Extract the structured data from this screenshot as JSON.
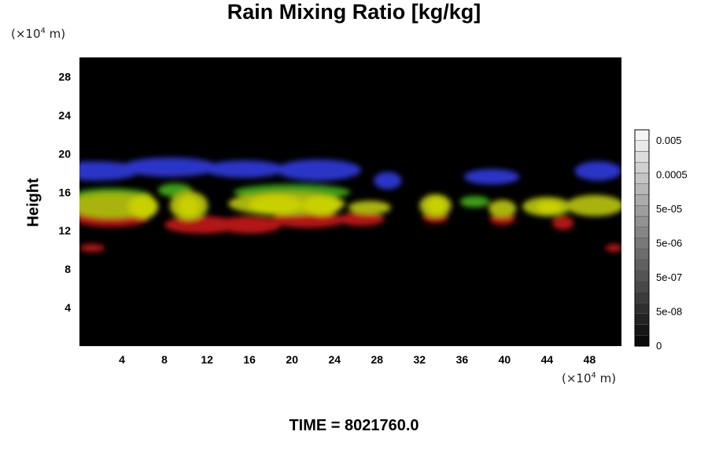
{
  "chart_data": {
    "type": "heatmap",
    "title": "Rain Mixing Ratio [kg/kg]",
    "ylabel": "Height",
    "xlabel": "",
    "x_unit_prefix": "(×10",
    "x_unit_exp": "4",
    "x_unit_suffix": " m)",
    "y_unit_prefix": "(×10",
    "y_unit_exp": "4",
    "y_unit_suffix": " m)",
    "xlim": [
      0,
      51
    ],
    "ylim": [
      0,
      30
    ],
    "x_ticks": [
      4,
      8,
      12,
      16,
      20,
      24,
      28,
      32,
      36,
      40,
      44,
      48
    ],
    "y_ticks": [
      4,
      8,
      12,
      16,
      20,
      24,
      28
    ],
    "background_color": "#000000",
    "colorbar": {
      "tick_labels": [
        "0.005",
        "0.0005",
        "5e-05",
        "5e-06",
        "5e-07",
        "5e-08",
        "0"
      ],
      "levels": 20
    },
    "regions": [
      {
        "layer": "blue",
        "color": "#2a34c8",
        "x": 1.5,
        "y": 18.2,
        "rx": 4.2,
        "ry": 1.0
      },
      {
        "layer": "blue",
        "color": "#2a34c8",
        "x": 8.5,
        "y": 18.6,
        "rx": 4.5,
        "ry": 1.0
      },
      {
        "layer": "blue",
        "color": "#2a34c8",
        "x": 15.5,
        "y": 18.4,
        "rx": 3.8,
        "ry": 0.9
      },
      {
        "layer": "blue",
        "color": "#2a34c8",
        "x": 22.5,
        "y": 18.3,
        "rx": 4.0,
        "ry": 1.1
      },
      {
        "layer": "blue",
        "color": "#2a34c8",
        "x": 29.0,
        "y": 17.2,
        "rx": 1.3,
        "ry": 0.9
      },
      {
        "layer": "blue",
        "color": "#2a34c8",
        "x": 38.8,
        "y": 17.6,
        "rx": 2.6,
        "ry": 0.8
      },
      {
        "layer": "blue",
        "color": "#2a34c8",
        "x": 48.8,
        "y": 18.2,
        "rx": 2.2,
        "ry": 1.0
      },
      {
        "layer": "red",
        "color": "#b21414",
        "x": 3.0,
        "y": 13.3,
        "rx": 3.6,
        "ry": 0.9
      },
      {
        "layer": "red",
        "color": "#b21414",
        "x": 11.5,
        "y": 12.6,
        "rx": 3.5,
        "ry": 0.9
      },
      {
        "layer": "red",
        "color": "#b21414",
        "x": 16.0,
        "y": 12.6,
        "rx": 3.0,
        "ry": 0.9
      },
      {
        "layer": "red",
        "color": "#b21414",
        "x": 21.5,
        "y": 13.1,
        "rx": 3.5,
        "ry": 0.8
      },
      {
        "layer": "red",
        "color": "#b21414",
        "x": 26.5,
        "y": 13.2,
        "rx": 2.2,
        "ry": 0.7
      },
      {
        "layer": "red",
        "color": "#b21414",
        "x": 33.5,
        "y": 13.4,
        "rx": 1.2,
        "ry": 0.6
      },
      {
        "layer": "red",
        "color": "#b21414",
        "x": 39.8,
        "y": 13.2,
        "rx": 1.2,
        "ry": 0.6
      },
      {
        "layer": "red",
        "color": "#b21414",
        "x": 45.5,
        "y": 12.8,
        "rx": 1.0,
        "ry": 0.7
      },
      {
        "layer": "red",
        "color": "#b21414",
        "x": 1.2,
        "y": 10.2,
        "rx": 1.2,
        "ry": 0.4
      },
      {
        "layer": "red",
        "color": "#b21414",
        "x": 50.3,
        "y": 10.2,
        "rx": 0.8,
        "ry": 0.4
      },
      {
        "layer": "green",
        "color": "#3c9c14",
        "x": 3.0,
        "y": 15.6,
        "rx": 3.8,
        "ry": 0.8
      },
      {
        "layer": "green",
        "color": "#3c9c14",
        "x": 9.0,
        "y": 16.2,
        "rx": 1.6,
        "ry": 0.7
      },
      {
        "layer": "green",
        "color": "#3c9c14",
        "x": 20.0,
        "y": 16.0,
        "rx": 5.5,
        "ry": 0.8
      },
      {
        "layer": "green",
        "color": "#3c9c14",
        "x": 37.2,
        "y": 15.0,
        "rx": 1.4,
        "ry": 0.6
      },
      {
        "layer": "yellow",
        "color": "#a8b40e",
        "x": 3.0,
        "y": 14.6,
        "rx": 4.0,
        "ry": 1.3
      },
      {
        "layer": "yellow",
        "color": "#a8b40e",
        "x": 10.3,
        "y": 14.6,
        "rx": 1.8,
        "ry": 1.5
      },
      {
        "layer": "yellow",
        "color": "#a8b40e",
        "x": 19.5,
        "y": 14.8,
        "rx": 5.5,
        "ry": 1.2
      },
      {
        "layer": "yellow",
        "color": "#a8b40e",
        "x": 27.3,
        "y": 14.4,
        "rx": 2.0,
        "ry": 0.7
      },
      {
        "layer": "yellow",
        "color": "#a8b40e",
        "x": 33.5,
        "y": 14.6,
        "rx": 1.5,
        "ry": 1.2
      },
      {
        "layer": "yellow",
        "color": "#a8b40e",
        "x": 39.8,
        "y": 14.3,
        "rx": 1.3,
        "ry": 0.9
      },
      {
        "layer": "yellow",
        "color": "#a8b40e",
        "x": 44.0,
        "y": 14.5,
        "rx": 2.3,
        "ry": 1.0
      },
      {
        "layer": "yellow",
        "color": "#a8b40e",
        "x": 48.5,
        "y": 14.6,
        "rx": 2.7,
        "ry": 1.1
      },
      {
        "layer": "yellow-bright",
        "color": "#c8d000",
        "x": 6.0,
        "y": 14.5,
        "rx": 1.4,
        "ry": 1.2
      },
      {
        "layer": "yellow-bright",
        "color": "#c8d000",
        "x": 10.3,
        "y": 14.5,
        "rx": 1.0,
        "ry": 1.1
      },
      {
        "layer": "yellow-bright",
        "color": "#c8d000",
        "x": 18.5,
        "y": 14.7,
        "rx": 2.5,
        "ry": 1.0
      },
      {
        "layer": "yellow-bright",
        "color": "#c8d000",
        "x": 22.8,
        "y": 14.6,
        "rx": 1.8,
        "ry": 1.0
      },
      {
        "layer": "yellow-bright",
        "color": "#c8d000",
        "x": 33.6,
        "y": 14.6,
        "rx": 0.9,
        "ry": 0.9
      },
      {
        "layer": "yellow-bright",
        "color": "#c8d000",
        "x": 44.2,
        "y": 14.4,
        "rx": 1.2,
        "ry": 0.7
      }
    ],
    "time_label": "TIME = 8021760.0"
  }
}
